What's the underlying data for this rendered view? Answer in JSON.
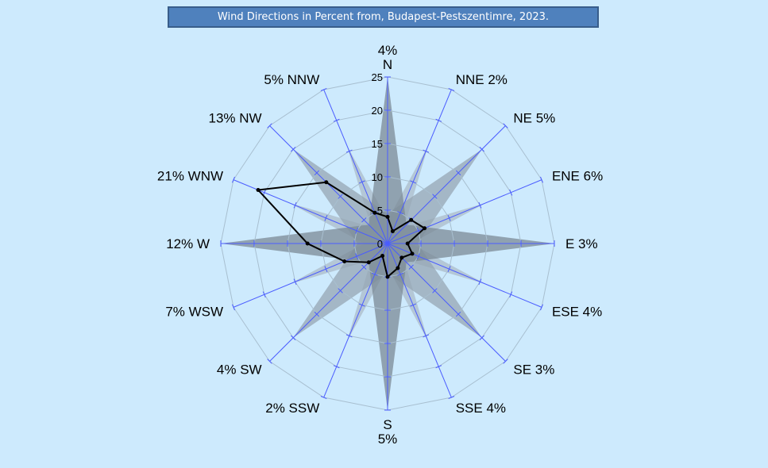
{
  "chart_data": {
    "type": "radar",
    "title": "Wind Directions in Percent from, Budapest-Pestszentimre,  2023.",
    "categories": [
      "N",
      "NNE",
      "NE",
      "ENE",
      "E",
      "ESE",
      "SE",
      "SSE",
      "S",
      "SSW",
      "SW",
      "WSW",
      "W",
      "WNW",
      "NW",
      "NNW"
    ],
    "values": [
      4,
      2,
      5,
      6,
      3,
      4,
      3,
      4,
      5,
      2,
      4,
      7,
      12,
      21,
      13,
      5
    ],
    "value_labels": [
      "4%",
      "2%",
      "5%",
      "6%",
      "3%",
      "4%",
      "3%",
      "4%",
      "5%",
      "2%",
      "4%",
      "7%",
      "12%",
      "21%",
      "13%",
      "5%"
    ],
    "rlim": [
      0,
      25
    ],
    "ticks": [
      "0",
      "5",
      "10",
      "15",
      "20",
      "25"
    ],
    "tick_values": [
      0,
      5,
      10,
      15,
      20,
      25
    ],
    "series_color": "#000000",
    "axis_color": "#4a5cff"
  }
}
